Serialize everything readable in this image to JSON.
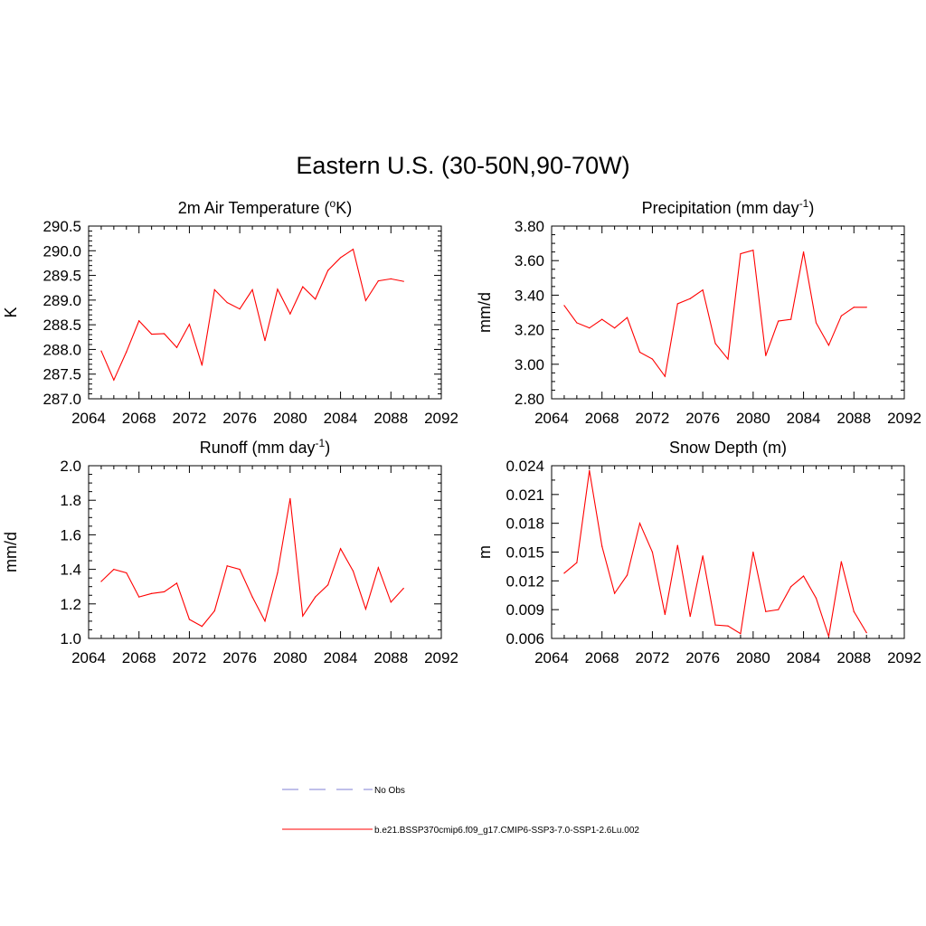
{
  "title": "Eastern U.S. (30-50N,90-70W)",
  "line_color": "#ff0000",
  "obs_color": "#9999dd",
  "legend": {
    "obs_label": "No Obs",
    "model_label": "b.e21.BSSP370cmip6.f09_g17.CMIP6-SSP3-7.0-SSP1-2.6Lu.002"
  },
  "chart_data": [
    {
      "type": "line",
      "title_main": "2m Air Temperature (",
      "title_sup": "o",
      "title_end": "K)",
      "ylabel": "K",
      "xlim": [
        2064,
        2092
      ],
      "x_ticks": [
        2064,
        2068,
        2072,
        2076,
        2080,
        2084,
        2088,
        2092
      ],
      "x_tick_labels": [
        "2064",
        "2068",
        "2072",
        "2076",
        "2080",
        "2084",
        "2088",
        "2092"
      ],
      "ylim": [
        287.0,
        290.5
      ],
      "y_ticks": [
        287.0,
        287.5,
        288.0,
        288.5,
        289.0,
        289.5,
        290.0,
        290.5
      ],
      "y_tick_labels": [
        "287.0",
        "287.5",
        "288.0",
        "288.5",
        "289.0",
        "289.5",
        "290.0",
        "290.5"
      ],
      "y_minor": 0.1,
      "x": [
        2065,
        2066,
        2067,
        2068,
        2069,
        2070,
        2071,
        2072,
        2073,
        2074,
        2075,
        2076,
        2077,
        2078,
        2079,
        2080,
        2081,
        2082,
        2083,
        2084,
        2085,
        2086,
        2087,
        2088,
        2089
      ],
      "values": [
        287.97,
        287.38,
        287.95,
        288.58,
        288.31,
        288.32,
        288.04,
        288.51,
        287.68,
        289.21,
        288.95,
        288.82,
        289.21,
        288.18,
        289.22,
        288.72,
        289.27,
        289.02,
        289.6,
        289.86,
        290.03,
        288.99,
        289.39,
        289.43,
        289.38
      ]
    },
    {
      "type": "line",
      "title_main": "Precipitation (mm day",
      "title_sup": "-1",
      "title_end": ")",
      "ylabel": "mm/d",
      "xlim": [
        2064,
        2092
      ],
      "x_ticks": [
        2064,
        2068,
        2072,
        2076,
        2080,
        2084,
        2088,
        2092
      ],
      "x_tick_labels": [
        "2064",
        "2068",
        "2072",
        "2076",
        "2080",
        "2084",
        "2088",
        "2092"
      ],
      "ylim": [
        2.8,
        3.8
      ],
      "y_ticks": [
        2.8,
        3.0,
        3.2,
        3.4,
        3.6,
        3.8
      ],
      "y_tick_labels": [
        "2.80",
        "3.00",
        "3.20",
        "3.40",
        "3.60",
        "3.80"
      ],
      "y_minor": 0.05,
      "x": [
        2065,
        2066,
        2067,
        2068,
        2069,
        2070,
        2071,
        2072,
        2073,
        2074,
        2075,
        2076,
        2077,
        2078,
        2079,
        2080,
        2081,
        2082,
        2083,
        2084,
        2085,
        2086,
        2087,
        2088,
        2089
      ],
      "values": [
        3.34,
        3.24,
        3.21,
        3.26,
        3.21,
        3.27,
        3.07,
        3.03,
        2.93,
        3.35,
        3.38,
        3.43,
        3.12,
        3.03,
        3.64,
        3.66,
        3.05,
        3.25,
        3.26,
        3.65,
        3.24,
        3.11,
        3.28,
        3.33,
        3.33
      ]
    },
    {
      "type": "line",
      "title_main": "Runoff (mm day",
      "title_sup": "-1",
      "title_end": ")",
      "ylabel": "mm/d",
      "xlim": [
        2064,
        2092
      ],
      "x_ticks": [
        2064,
        2068,
        2072,
        2076,
        2080,
        2084,
        2088,
        2092
      ],
      "x_tick_labels": [
        "2064",
        "2068",
        "2072",
        "2076",
        "2080",
        "2084",
        "2088",
        "2092"
      ],
      "ylim": [
        1.0,
        2.0
      ],
      "y_ticks": [
        1.0,
        1.2,
        1.4,
        1.6,
        1.8,
        2.0
      ],
      "y_tick_labels": [
        "1.0",
        "1.2",
        "1.4",
        "1.6",
        "1.8",
        "2.0"
      ],
      "y_minor": 0.05,
      "x": [
        2065,
        2066,
        2067,
        2068,
        2069,
        2070,
        2071,
        2072,
        2073,
        2074,
        2075,
        2076,
        2077,
        2078,
        2079,
        2080,
        2081,
        2082,
        2083,
        2084,
        2085,
        2086,
        2087,
        2088,
        2089
      ],
      "values": [
        1.33,
        1.4,
        1.38,
        1.24,
        1.26,
        1.27,
        1.32,
        1.11,
        1.07,
        1.16,
        1.42,
        1.4,
        1.24,
        1.1,
        1.38,
        1.81,
        1.13,
        1.24,
        1.31,
        1.52,
        1.39,
        1.17,
        1.41,
        1.21,
        1.29
      ]
    },
    {
      "type": "line",
      "title_main": "Snow Depth (m)",
      "title_sup": "",
      "title_end": "",
      "ylabel": "m",
      "xlim": [
        2064,
        2092
      ],
      "x_ticks": [
        2064,
        2068,
        2072,
        2076,
        2080,
        2084,
        2088,
        2092
      ],
      "x_tick_labels": [
        "2064",
        "2068",
        "2072",
        "2076",
        "2080",
        "2084",
        "2088",
        "2092"
      ],
      "ylim": [
        0.006,
        0.024
      ],
      "y_ticks": [
        0.006,
        0.009,
        0.012,
        0.015,
        0.018,
        0.021,
        0.024
      ],
      "y_tick_labels": [
        "0.006",
        "0.009",
        "0.012",
        "0.015",
        "0.018",
        "0.021",
        "0.024"
      ],
      "y_minor": 0.0015,
      "x": [
        2065,
        2066,
        2067,
        2068,
        2069,
        2070,
        2071,
        2072,
        2073,
        2074,
        2075,
        2076,
        2077,
        2078,
        2079,
        2080,
        2081,
        2082,
        2083,
        2084,
        2085,
        2086,
        2087,
        2088,
        2089
      ],
      "values": [
        0.0128,
        0.0139,
        0.0235,
        0.0156,
        0.0107,
        0.0126,
        0.018,
        0.015,
        0.0085,
        0.0157,
        0.0083,
        0.0146,
        0.0074,
        0.0073,
        0.0065,
        0.015,
        0.0088,
        0.009,
        0.0114,
        0.0125,
        0.0102,
        0.0062,
        0.014,
        0.0088,
        0.0066
      ]
    }
  ]
}
